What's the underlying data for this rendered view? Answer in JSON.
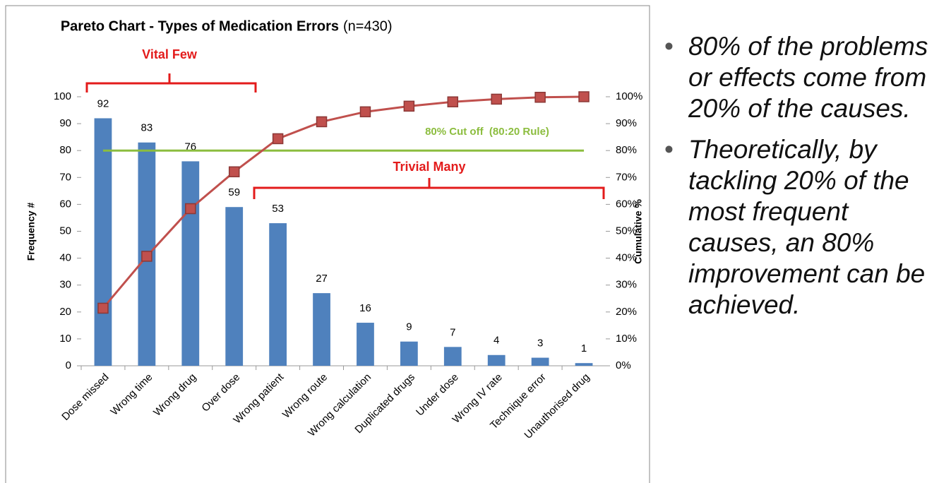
{
  "chart_data": {
    "type": "pareto",
    "title": "Pareto Chart - Types of Medication Errors",
    "subtitle": "(n=430)",
    "y_label": "Frequency #",
    "y2_label": "Cumulative %",
    "categories": [
      "Dose missed",
      "Wrong time",
      "Wrong drug",
      "Over dose",
      "Wrong patient",
      "Wrong route",
      "Wrong calculation",
      "Duplicated drugs",
      "Under dose",
      "Wrong IV rate",
      "Technique error",
      "Unauthorised drug"
    ],
    "series": [
      {
        "name": "Frequency",
        "type": "bar",
        "color": "#4f81bd",
        "values": [
          92,
          83,
          76,
          59,
          53,
          27,
          16,
          9,
          7,
          4,
          3,
          1
        ]
      },
      {
        "name": "Cumulative %",
        "type": "line",
        "axis": "y2",
        "color": "#c0504d",
        "values": [
          21.4,
          40.7,
          58.4,
          72.1,
          84.4,
          90.7,
          94.4,
          96.5,
          98.1,
          99.1,
          99.8,
          100
        ]
      }
    ],
    "ylim": [
      0,
      100
    ],
    "yticks": [
      0,
      10,
      20,
      30,
      40,
      50,
      60,
      70,
      80,
      90,
      100
    ],
    "y2lim": [
      0,
      100
    ],
    "y2ticks": [
      {
        "value": 0,
        "label": "0%"
      },
      {
        "value": 10,
        "label": "10%"
      },
      {
        "value": 20,
        "label": "20%"
      },
      {
        "value": 30,
        "label": "30%"
      },
      {
        "value": 40,
        "label": "40%"
      },
      {
        "value": 50,
        "label": "50%"
      },
      {
        "value": 60,
        "label": "60%"
      },
      {
        "value": 70,
        "label": "70%"
      },
      {
        "value": 80,
        "label": "80%"
      },
      {
        "value": 90,
        "label": "90%"
      },
      {
        "value": 100,
        "label": "100%"
      }
    ],
    "cutoff": {
      "label": "80% Cut off  (80:20 Rule)",
      "value": 80,
      "color": "#8cbd3f"
    },
    "annotations": [
      "Vital Few",
      "Trivial Many"
    ]
  },
  "notes": [
    "80% of the problems or effects come from 20% of the causes.",
    "Theoretically, by tackling 20% of the most frequent causes, an 80% improvement can be achieved."
  ]
}
